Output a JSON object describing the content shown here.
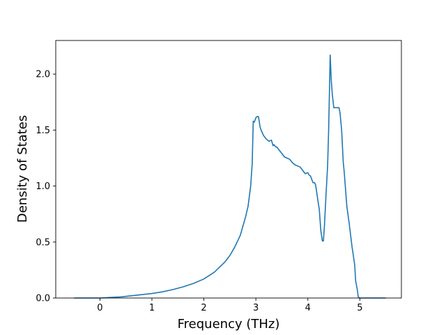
{
  "chart_data": {
    "type": "line",
    "title": "",
    "xlabel": "Frequency (THz)",
    "ylabel": "Density of States",
    "xlim": [
      -0.85,
      5.8
    ],
    "ylim": [
      0,
      2.3
    ],
    "xticks": [
      0,
      1,
      2,
      3,
      4,
      5
    ],
    "xtick_labels": [
      "0",
      "1",
      "2",
      "3",
      "4",
      "5"
    ],
    "yticks": [
      0.0,
      0.5,
      1.0,
      1.5,
      2.0
    ],
    "ytick_labels": [
      "0.0",
      "0.5",
      "1.0",
      "1.5",
      "2.0"
    ],
    "grid": false,
    "legend": "none",
    "series": [
      {
        "color": "#1f77b4",
        "x": [
          -0.5,
          0.0,
          0.2,
          0.4,
          0.6,
          0.8,
          1.0,
          1.2,
          1.4,
          1.6,
          1.8,
          2.0,
          2.2,
          2.4,
          2.5,
          2.6,
          2.7,
          2.8,
          2.85,
          2.9,
          2.93,
          2.95,
          2.97,
          3.0,
          3.02,
          3.05,
          3.08,
          3.1,
          3.15,
          3.2,
          3.25,
          3.3,
          3.33,
          3.35,
          3.38,
          3.4,
          3.45,
          3.5,
          3.55,
          3.6,
          3.65,
          3.7,
          3.75,
          3.8,
          3.85,
          3.9,
          3.95,
          4.0,
          4.02,
          4.05,
          4.1,
          4.13,
          4.15,
          4.2,
          4.22,
          4.25,
          4.28,
          4.3,
          4.32,
          4.35,
          4.38,
          4.4,
          4.43,
          4.45,
          4.47,
          4.5,
          4.55,
          4.6,
          4.62,
          4.65,
          4.68,
          4.7,
          4.75,
          4.8,
          4.85,
          4.9,
          4.92,
          4.95,
          4.97,
          5.0,
          5.2,
          5.5
        ],
        "y": [
          0.0,
          0.0,
          0.005,
          0.01,
          0.02,
          0.03,
          0.04,
          0.055,
          0.075,
          0.1,
          0.13,
          0.17,
          0.23,
          0.32,
          0.38,
          0.46,
          0.56,
          0.72,
          0.82,
          1.0,
          1.2,
          1.58,
          1.57,
          1.61,
          1.62,
          1.62,
          1.53,
          1.5,
          1.45,
          1.42,
          1.4,
          1.41,
          1.36,
          1.37,
          1.35,
          1.35,
          1.32,
          1.29,
          1.26,
          1.25,
          1.24,
          1.21,
          1.19,
          1.18,
          1.17,
          1.14,
          1.11,
          1.12,
          1.1,
          1.09,
          1.03,
          1.03,
          1.01,
          0.85,
          0.79,
          0.6,
          0.51,
          0.51,
          0.65,
          0.92,
          1.18,
          1.5,
          2.17,
          1.95,
          1.82,
          1.7,
          1.7,
          1.7,
          1.65,
          1.5,
          1.22,
          1.12,
          0.82,
          0.65,
          0.46,
          0.3,
          0.15,
          0.08,
          0.01,
          0.0,
          0.0,
          0.0
        ]
      }
    ]
  }
}
